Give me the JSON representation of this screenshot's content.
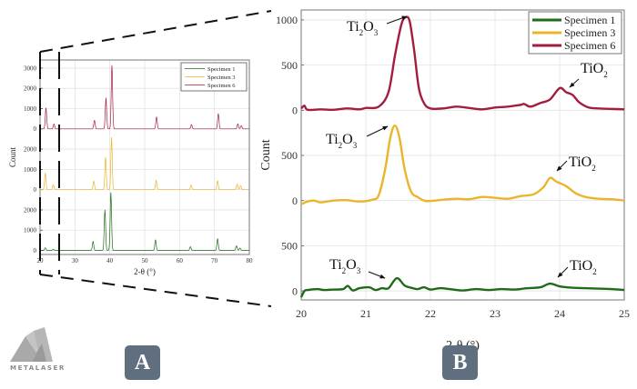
{
  "logo": {
    "text": "METALASER"
  },
  "badges": {
    "a": "A",
    "b": "B"
  },
  "colors": {
    "specimen1": "#1f6b1a",
    "specimen3": "#ecb42c",
    "specimen6": "#a31d3f",
    "badge": "#5f6f80",
    "grid": "#e3e3e3"
  },
  "chart_data": [
    {
      "id": "A",
      "type": "line",
      "xlabel": "2-θ (°)",
      "ylabel": "Count",
      "xlim": [
        20,
        80
      ],
      "xticks": [
        "20",
        "30",
        "40",
        "50",
        "60",
        "70",
        "80"
      ],
      "grid": true,
      "legend": "top-right",
      "offset_step": 3000,
      "tracks": [
        {
          "name": "Specimen 6",
          "yticks": [
            "0",
            "1000",
            "2000",
            "3000"
          ]
        },
        {
          "name": "Specimen 3",
          "yticks": [
            "0",
            "1000",
            "2000"
          ]
        },
        {
          "name": "Specimen 1",
          "yticks": [
            "0",
            "1000",
            "2000"
          ]
        }
      ],
      "series": [
        {
          "name": "Specimen 1",
          "peaks": [
            [
              21.5,
              130
            ],
            [
              23.8,
              60
            ],
            [
              35.2,
              450
            ],
            [
              38.6,
              2000
            ],
            [
              40.3,
              2850
            ],
            [
              53.1,
              520
            ],
            [
              63.1,
              180
            ],
            [
              70.9,
              580
            ],
            [
              76.3,
              230
            ],
            [
              77.3,
              120
            ]
          ]
        },
        {
          "name": "Specimen 3",
          "peaks": [
            [
              21.5,
              820
            ],
            [
              23.8,
              250
            ],
            [
              35.4,
              430
            ],
            [
              38.8,
              1600
            ],
            [
              40.5,
              2570
            ],
            [
              53.3,
              460
            ],
            [
              63.3,
              230
            ],
            [
              70.9,
              440
            ],
            [
              76.5,
              270
            ],
            [
              77.5,
              200
            ]
          ]
        },
        {
          "name": "Specimen 6",
          "peaks": [
            [
              21.7,
              1030
            ],
            [
              24.0,
              240
            ],
            [
              35.6,
              420
            ],
            [
              38.9,
              1530
            ],
            [
              40.6,
              3130
            ],
            [
              53.4,
              590
            ],
            [
              63.4,
              210
            ],
            [
              71.1,
              750
            ],
            [
              76.7,
              250
            ],
            [
              77.7,
              150
            ]
          ]
        }
      ]
    },
    {
      "id": "B",
      "type": "line",
      "xlabel": "2-θ (°)",
      "ylabel": "Count",
      "xlim": [
        20,
        25
      ],
      "xticks": [
        "20",
        "21",
        "22",
        "23",
        "24",
        "25"
      ],
      "grid": true,
      "legend": "top-right",
      "offset_step": 1000,
      "tracks": [
        {
          "name": "Specimen 6",
          "yticks": [
            "0",
            "500",
            "1000"
          ]
        },
        {
          "name": "Specimen 3",
          "yticks": [
            "0",
            "500"
          ]
        },
        {
          "name": "Specimen 1",
          "yticks": [
            "0",
            "500"
          ]
        }
      ],
      "annotations": [
        {
          "series": "Specimen 6",
          "label": "Ti2O3",
          "main": "Ti",
          "sub1": "2",
          "mid": "O",
          "sub2": "3",
          "x": 21.67,
          "y": 1030
        },
        {
          "series": "Specimen 6",
          "label": "TiO2",
          "main": "TiO",
          "sub1": "2",
          "x": 24.0,
          "y": 240
        },
        {
          "series": "Specimen 3",
          "label": "Ti2O3",
          "main": "Ti",
          "sub1": "2",
          "mid": "O",
          "sub2": "3",
          "x": 21.5,
          "y": 840
        },
        {
          "series": "Specimen 3",
          "label": "TiO2",
          "main": "TiO",
          "sub1": "2",
          "x": 23.85,
          "y": 250
        },
        {
          "series": "Specimen 1",
          "label": "Ti2O3",
          "main": "Ti",
          "sub1": "2",
          "mid": "O",
          "sub2": "3",
          "x": 21.5,
          "y": 140
        },
        {
          "series": "Specimen 1",
          "label": "TiO2",
          "main": "TiO",
          "sub1": "2",
          "x": 23.85,
          "y": 80
        }
      ],
      "series": [
        {
          "name": "Specimen 1",
          "x": [
            20.0,
            20.05,
            20.1,
            20.25,
            20.35,
            20.5,
            20.65,
            20.72,
            20.8,
            20.9,
            21.05,
            21.15,
            21.25,
            21.35,
            21.48,
            21.6,
            21.7,
            21.8,
            21.9,
            22.0,
            22.15,
            22.3,
            22.5,
            22.7,
            22.9,
            23.1,
            23.3,
            23.5,
            23.7,
            23.85,
            24.0,
            24.2,
            24.4,
            24.6,
            24.8,
            25.0
          ],
          "y": [
            -70,
            0,
            10,
            20,
            10,
            15,
            20,
            55,
            5,
            30,
            40,
            10,
            30,
            30,
            140,
            60,
            35,
            20,
            40,
            15,
            30,
            20,
            5,
            20,
            10,
            20,
            15,
            30,
            40,
            80,
            50,
            35,
            30,
            25,
            20,
            10
          ]
        },
        {
          "name": "Specimen 3",
          "x": [
            20.0,
            20.1,
            20.2,
            20.3,
            20.5,
            20.7,
            20.9,
            21.1,
            21.2,
            21.3,
            21.38,
            21.45,
            21.52,
            21.6,
            21.7,
            21.8,
            21.9,
            22.0,
            22.2,
            22.4,
            22.6,
            22.8,
            23.0,
            23.2,
            23.4,
            23.6,
            23.75,
            23.85,
            23.95,
            24.1,
            24.25,
            24.4,
            24.6,
            24.8,
            25.0
          ],
          "y": [
            -40,
            -10,
            0,
            -20,
            0,
            5,
            -10,
            10,
            60,
            350,
            700,
            830,
            700,
            350,
            100,
            40,
            0,
            -5,
            10,
            20,
            15,
            40,
            30,
            20,
            50,
            70,
            150,
            250,
            210,
            160,
            80,
            40,
            20,
            15,
            0
          ]
        },
        {
          "name": "Specimen 6",
          "x": [
            20.0,
            20.05,
            20.1,
            20.3,
            20.5,
            20.7,
            20.9,
            21.0,
            21.2,
            21.35,
            21.45,
            21.55,
            21.62,
            21.68,
            21.75,
            21.82,
            21.9,
            22.0,
            22.2,
            22.4,
            22.6,
            22.8,
            23.0,
            23.2,
            23.4,
            23.45,
            23.55,
            23.7,
            23.85,
            24.0,
            24.1,
            24.2,
            24.3,
            24.45,
            24.6,
            24.8,
            25.0
          ],
          "y": [
            20,
            50,
            5,
            10,
            5,
            20,
            10,
            25,
            40,
            200,
            600,
            950,
            1030,
            980,
            650,
            250,
            80,
            20,
            20,
            40,
            25,
            10,
            30,
            40,
            60,
            70,
            40,
            80,
            120,
            245,
            200,
            170,
            90,
            30,
            20,
            15,
            10
          ]
        }
      ]
    }
  ]
}
